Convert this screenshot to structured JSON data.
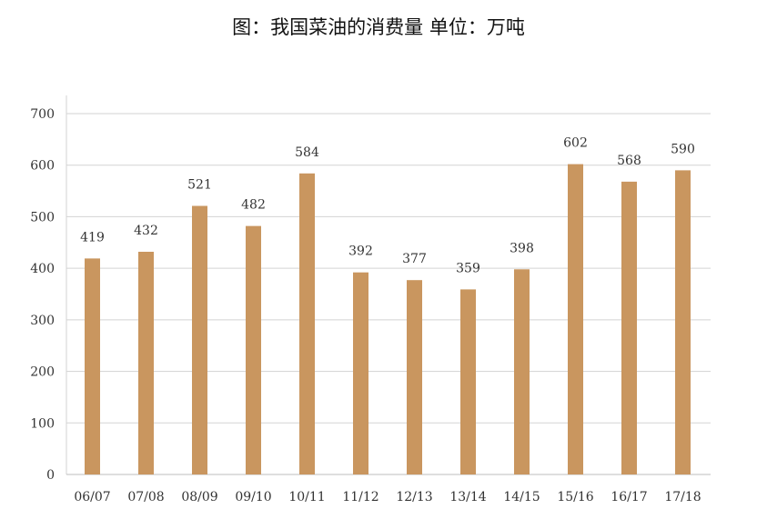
{
  "chart_data": {
    "type": "bar",
    "title": "图：我国菜油的消费量 单位：万吨",
    "xlabel": "",
    "ylabel": "",
    "categories": [
      "06/07",
      "07/08",
      "08/09",
      "09/10",
      "10/11",
      "11/12",
      "12/13",
      "13/14",
      "14/15",
      "15/16",
      "16/17",
      "17/18"
    ],
    "values": [
      419,
      432,
      521,
      482,
      584,
      392,
      377,
      359,
      398,
      602,
      568,
      590
    ],
    "ylim": [
      0,
      700
    ],
    "yticks": [
      0,
      100,
      200,
      300,
      400,
      500,
      600,
      700
    ],
    "grid": true,
    "bar_color": "#C9965F",
    "grid_color": "#D3D3D3",
    "data_labels": true
  }
}
